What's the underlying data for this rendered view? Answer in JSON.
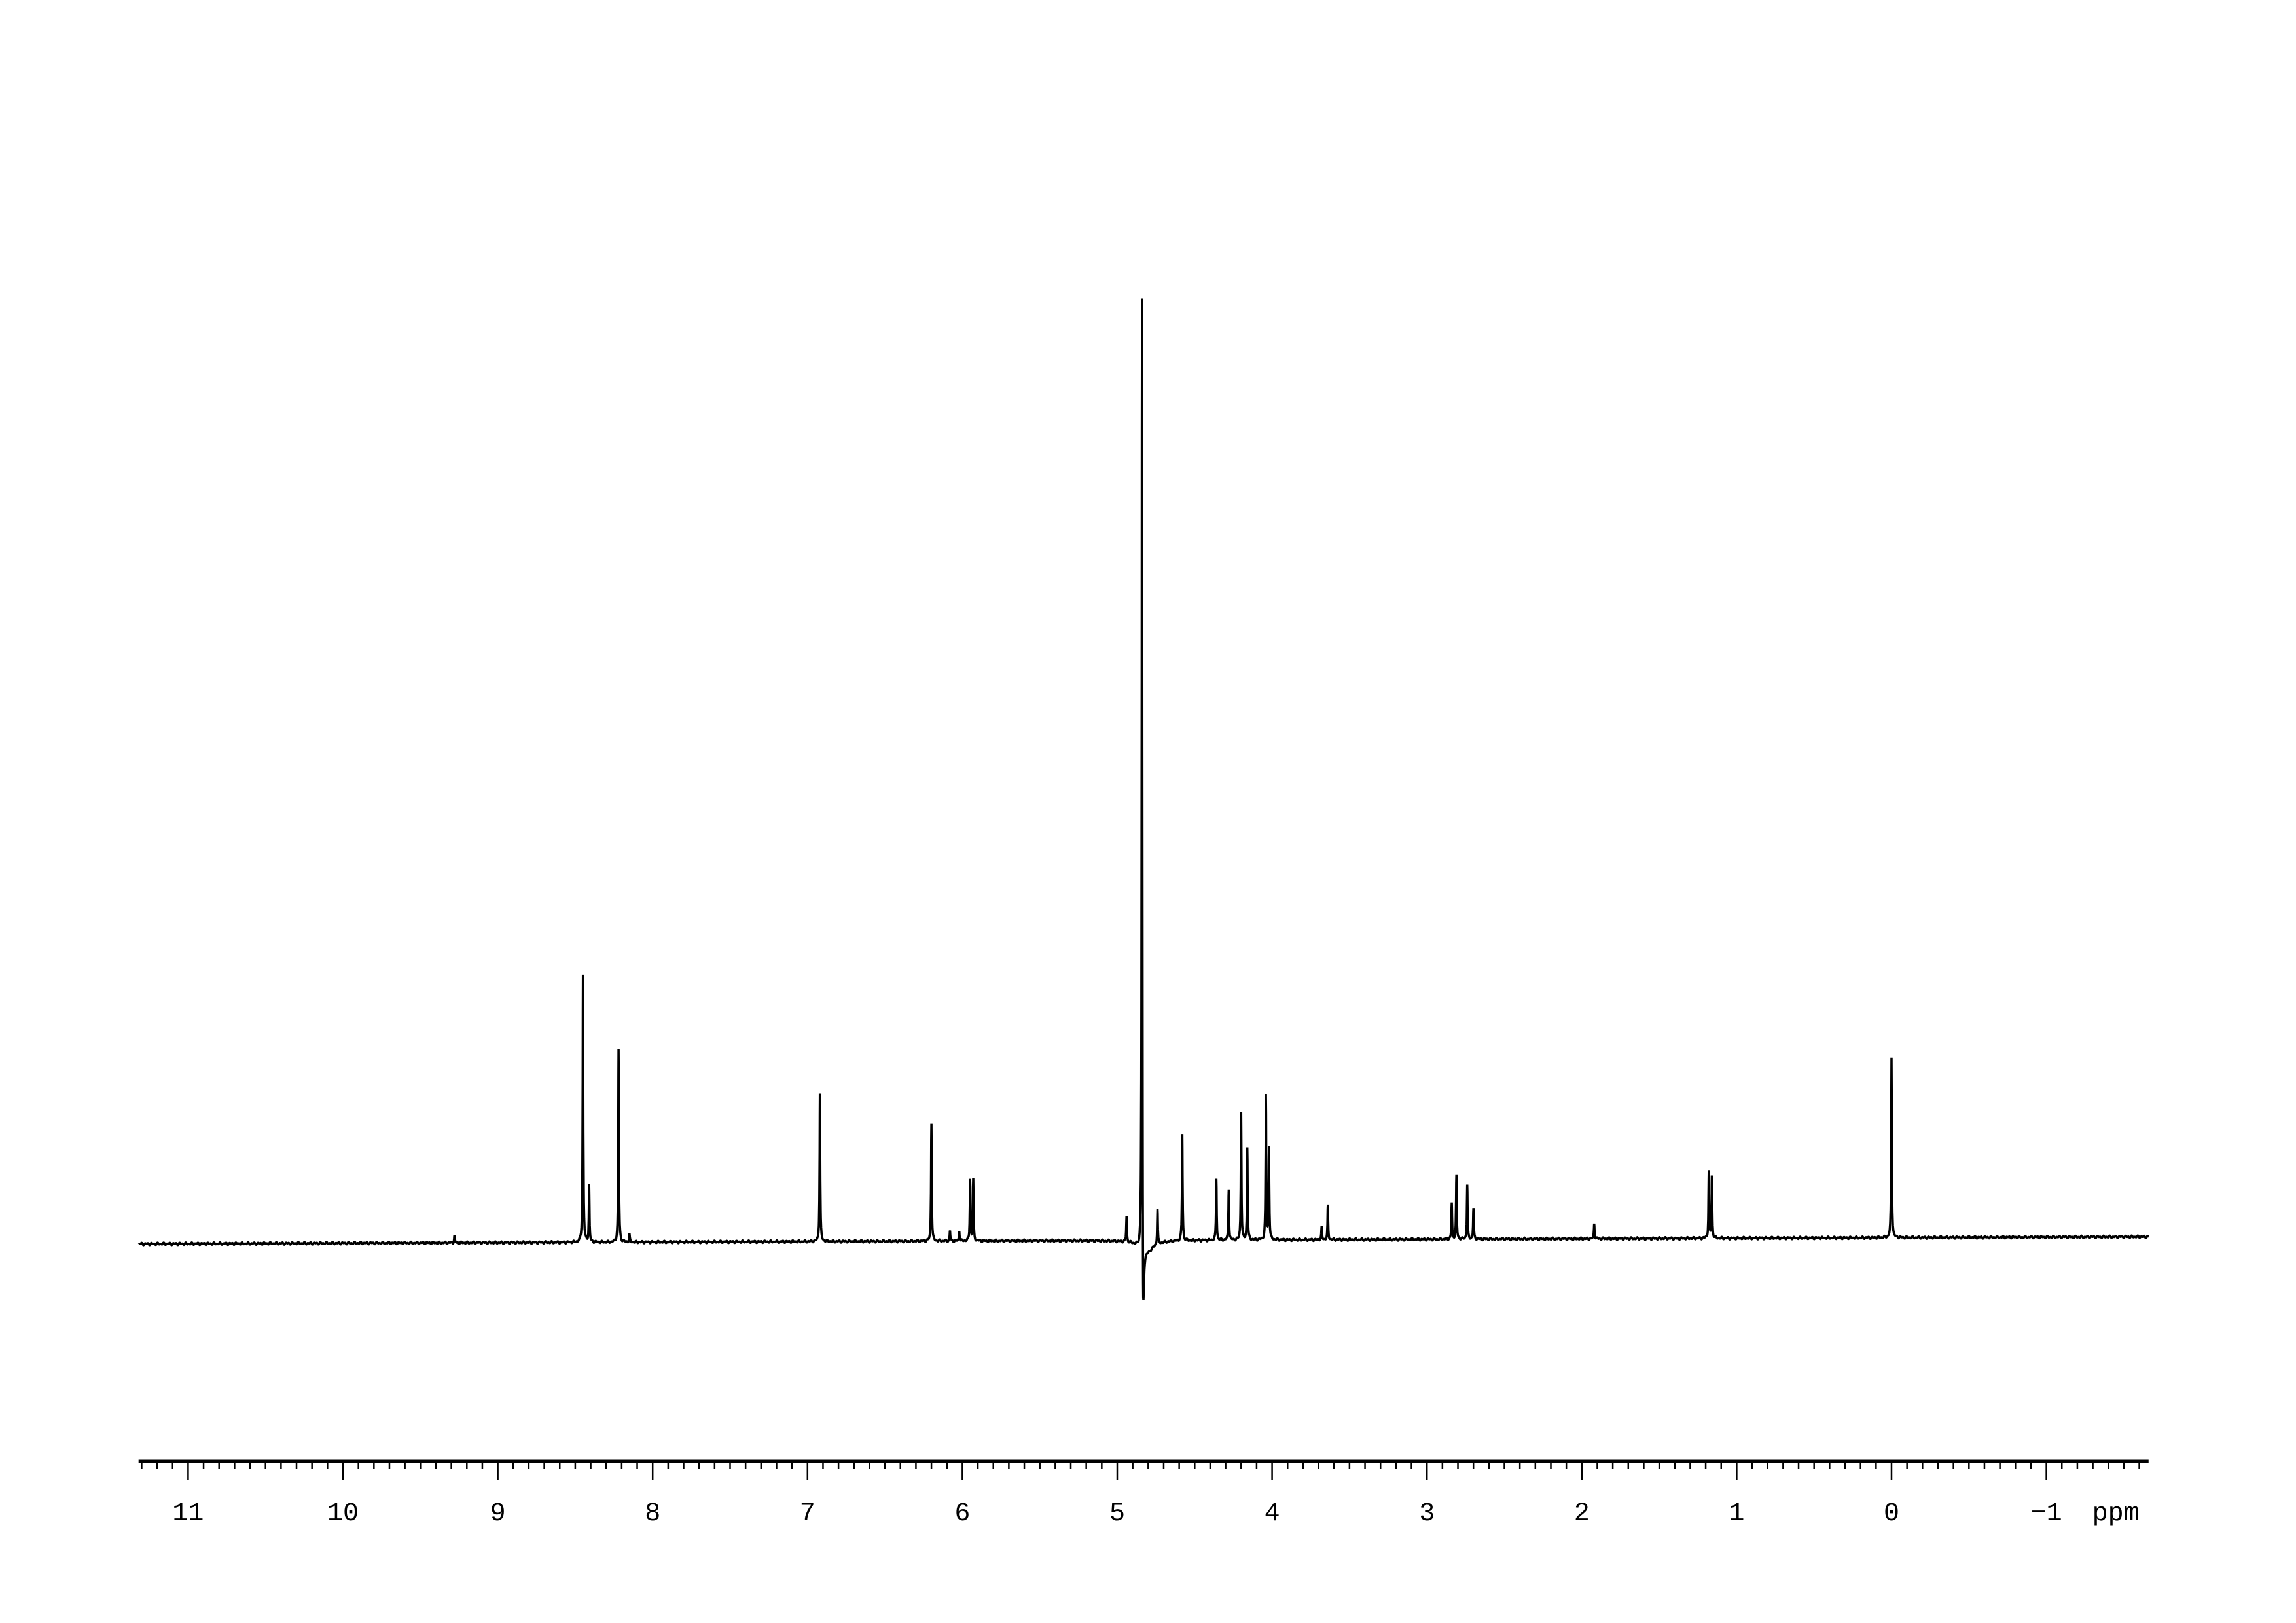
{
  "chart_data": {
    "type": "line",
    "title": "",
    "xlabel": "ppm",
    "ylabel": "",
    "xlim": [
      11.32,
      -1.66
    ],
    "x_reversed": true,
    "grid": false,
    "x_ticks": [
      11,
      10,
      9,
      8,
      7,
      6,
      5,
      4,
      3,
      2,
      1,
      0,
      -1
    ],
    "x_tick_labels": [
      "11",
      "10",
      "9",
      "8",
      "7",
      "6",
      "5",
      "4",
      "3",
      "2",
      "1",
      "0",
      "−1"
    ],
    "unit_label": "ppm",
    "line_color": "#000000",
    "intensity_scale": "relative, tallest peak = 100",
    "peaks": [
      {
        "ppm": 8.45,
        "intensity": 26
      },
      {
        "ppm": 8.41,
        "intensity": 5.5
      },
      {
        "ppm": 8.22,
        "intensity": 18.8
      },
      {
        "ppm": 8.15,
        "intensity": 0.8
      },
      {
        "ppm": 9.28,
        "intensity": 0.7
      },
      {
        "ppm": 6.92,
        "intensity": 14.4
      },
      {
        "ppm": 6.2,
        "intensity": 11.5
      },
      {
        "ppm": 6.08,
        "intensity": 1.0
      },
      {
        "ppm": 6.02,
        "intensity": 1.0
      },
      {
        "ppm": 5.95,
        "intensity": 6
      },
      {
        "ppm": 5.93,
        "intensity": 6
      },
      {
        "ppm": 4.94,
        "intensity": 2.5
      },
      {
        "ppm": 4.84,
        "intensity": 100
      },
      {
        "ppm": 4.74,
        "intensity": 3.5
      },
      {
        "ppm": 4.58,
        "intensity": 10.4
      },
      {
        "ppm": 4.36,
        "intensity": 6
      },
      {
        "ppm": 4.28,
        "intensity": 5
      },
      {
        "ppm": 4.2,
        "intensity": 12.5
      },
      {
        "ppm": 4.16,
        "intensity": 9
      },
      {
        "ppm": 4.04,
        "intensity": 14
      },
      {
        "ppm": 4.02,
        "intensity": 9
      },
      {
        "ppm": 3.64,
        "intensity": 3.3
      },
      {
        "ppm": 3.68,
        "intensity": 1.2
      },
      {
        "ppm": 2.84,
        "intensity": 3.5
      },
      {
        "ppm": 2.81,
        "intensity": 6.2
      },
      {
        "ppm": 2.74,
        "intensity": 5.3
      },
      {
        "ppm": 2.7,
        "intensity": 3
      },
      {
        "ppm": 1.92,
        "intensity": 1.5
      },
      {
        "ppm": 1.18,
        "intensity": 6.5
      },
      {
        "ppm": 1.16,
        "intensity": 6
      },
      {
        "ppm": 0.0,
        "intensity": 17.5
      }
    ],
    "negative_features": [
      {
        "ppm": 4.84,
        "intensity": -15
      }
    ]
  }
}
